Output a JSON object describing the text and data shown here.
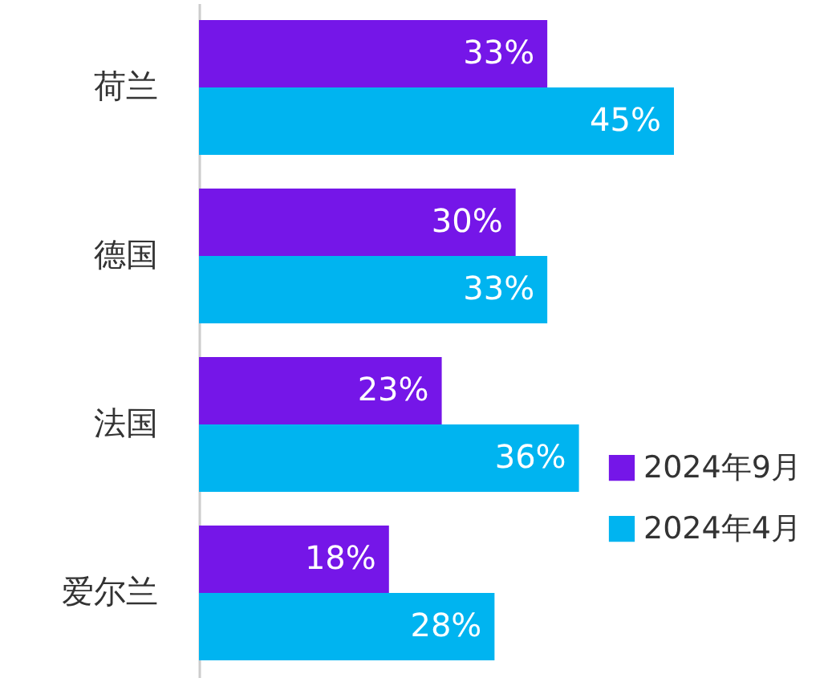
{
  "chart_data": {
    "type": "bar",
    "orientation": "horizontal",
    "categories": [
      "荷兰",
      "德国",
      "法国",
      "爱尔兰"
    ],
    "series": [
      {
        "name": "2024年9月",
        "color": "#7516e8",
        "values": [
          33,
          30,
          23,
          18
        ],
        "value_labels": [
          "33%",
          "30%",
          "23%",
          "18%"
        ]
      },
      {
        "name": "2024年4月",
        "color": "#00b4f0",
        "values": [
          45,
          33,
          36,
          28
        ],
        "value_labels": [
          "45%",
          "33%",
          "36%",
          "28%"
        ]
      }
    ],
    "legend": "bottom right"
  }
}
